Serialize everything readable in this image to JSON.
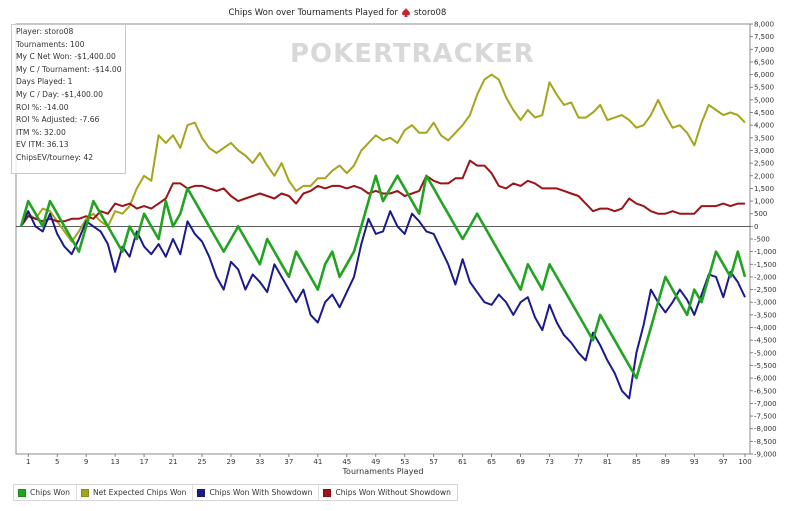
{
  "title_text": "Chips Won over Tournaments Played for",
  "player_name": "storo08",
  "watermark": "POKERTRACKER",
  "stats": [
    "Player: storo08",
    "Tournaments: 100",
    "My C Net Won: -$1,400.00",
    "My C / Tournament: -$14.00",
    "Days Played: 1",
    "My C / Day: -$1,400.00",
    "ROI %: -14.00",
    "ROI % Adjusted: -7.66",
    "ITM %: 32.00",
    "EV ITM: 36.13",
    "ChipsEV/tourney: 42"
  ],
  "chart_data": {
    "type": "line",
    "title": "Chips Won over Tournaments Played for storo08",
    "xlabel": "Tournaments Played",
    "ylabel": "",
    "xlim": [
      0,
      100
    ],
    "ylim": [
      -9000,
      8000
    ],
    "x_ticks": [
      1,
      5,
      9,
      13,
      17,
      21,
      25,
      29,
      33,
      37,
      41,
      45,
      49,
      53,
      57,
      61,
      65,
      69,
      73,
      77,
      81,
      85,
      89,
      93,
      97,
      100
    ],
    "y_ticks": [
      8000,
      7500,
      7000,
      6500,
      6000,
      5500,
      5000,
      4500,
      4000,
      3500,
      3000,
      2500,
      2000,
      1500,
      1000,
      500,
      0,
      -500,
      -1000,
      -1500,
      -2000,
      -2500,
      -3000,
      -3500,
      -4000,
      -4500,
      -5000,
      -5500,
      -6000,
      -6500,
      -7000,
      -7500,
      -8000,
      -8500,
      -9000
    ],
    "y_tick_labels": [
      "8,000",
      "7,500",
      "7,000",
      "6,500",
      "6,000",
      "5,500",
      "5,000",
      "4,500",
      "4,000",
      "3,500",
      "3,000",
      "2,500",
      "2,000",
      "1,500",
      "1,000",
      "500",
      "0",
      "-500",
      "-1,000",
      "-1,500",
      "-2,000",
      "-2,500",
      "-3,000",
      "-3,500",
      "-4,000",
      "-4,500",
      "-5,000",
      "-5,500",
      "-6,000",
      "-6,500",
      "-7,000",
      "-7,500",
      "-8,000",
      "-8,500",
      "-9,000"
    ],
    "grid": false,
    "legend_position": "bottom-left",
    "series": [
      {
        "name": "Chips Won",
        "color": "#22a322",
        "x": [
          0,
          1,
          2,
          3,
          4,
          5,
          6,
          7,
          8,
          9,
          10,
          11,
          12,
          13,
          14,
          15,
          16,
          17,
          18,
          19,
          20,
          21,
          22,
          23,
          24,
          25,
          26,
          27,
          28,
          29,
          30,
          31,
          32,
          33,
          34,
          35,
          36,
          37,
          38,
          39,
          40,
          41,
          42,
          43,
          44,
          45,
          46,
          47,
          48,
          49,
          50,
          51,
          52,
          53,
          54,
          55,
          56,
          57,
          58,
          59,
          60,
          61,
          62,
          63,
          64,
          65,
          66,
          67,
          68,
          69,
          70,
          71,
          72,
          73,
          74,
          75,
          76,
          77,
          78,
          79,
          80,
          81,
          82,
          83,
          84,
          85,
          86,
          87,
          88,
          89,
          90,
          91,
          92,
          93,
          94,
          95,
          96,
          97,
          98,
          99,
          100
        ],
        "values": [
          0,
          1000,
          500,
          0,
          1000,
          500,
          0,
          -500,
          -1000,
          0,
          1000,
          500,
          0,
          -500,
          -1000,
          0,
          -500,
          500,
          0,
          -500,
          1000,
          0,
          500,
          1500,
          1000,
          500,
          0,
          -500,
          -1000,
          -500,
          0,
          -500,
          -1000,
          -1500,
          -500,
          -1000,
          -1500,
          -2000,
          -1000,
          -1500,
          -2000,
          -2500,
          -1500,
          -1000,
          -2000,
          -1500,
          -1000,
          0,
          1000,
          2000,
          1000,
          1500,
          2000,
          1500,
          1000,
          500,
          2000,
          1500,
          1000,
          500,
          0,
          -500,
          0,
          500,
          0,
          -500,
          -1000,
          -1500,
          -2000,
          -2500,
          -1500,
          -2000,
          -2500,
          -1500,
          -2000,
          -2500,
          -3000,
          -3500,
          -4000,
          -4500,
          -3500,
          -4000,
          -4500,
          -5000,
          -5500,
          -6000,
          -5000,
          -4000,
          -3000,
          -2000,
          -2500,
          -3000,
          -3500,
          -2500,
          -3000,
          -2000,
          -1000,
          -1500,
          -2000,
          -1000,
          -2000
        ]
      },
      {
        "name": "Net Expected Chips Won",
        "color": "#a4a51c",
        "x": [
          0,
          1,
          2,
          3,
          4,
          5,
          6,
          7,
          8,
          9,
          10,
          11,
          12,
          13,
          14,
          15,
          16,
          17,
          18,
          19,
          20,
          21,
          22,
          23,
          24,
          25,
          26,
          27,
          28,
          29,
          30,
          31,
          32,
          33,
          34,
          35,
          36,
          37,
          38,
          39,
          40,
          41,
          42,
          43,
          44,
          45,
          46,
          47,
          48,
          49,
          50,
          51,
          52,
          53,
          54,
          55,
          56,
          57,
          58,
          59,
          60,
          61,
          62,
          63,
          64,
          65,
          66,
          67,
          68,
          69,
          70,
          71,
          72,
          73,
          74,
          75,
          76,
          77,
          78,
          79,
          80,
          81,
          82,
          83,
          84,
          85,
          86,
          87,
          88,
          89,
          90,
          91,
          92,
          93,
          94,
          95,
          96,
          97,
          98,
          99,
          100
        ],
        "values": [
          0,
          500,
          300,
          700,
          600,
          200,
          -200,
          -600,
          -200,
          300,
          500,
          200,
          0,
          600,
          500,
          800,
          1500,
          2000,
          1800,
          3600,
          3300,
          3600,
          3100,
          4000,
          4100,
          3500,
          3100,
          2900,
          3100,
          3300,
          3000,
          2800,
          2500,
          2900,
          2400,
          2000,
          2500,
          1800,
          1400,
          1600,
          1600,
          1900,
          1900,
          2200,
          2400,
          2100,
          2400,
          3000,
          3300,
          3600,
          3400,
          3500,
          3300,
          3800,
          4000,
          3700,
          3700,
          4100,
          3600,
          3400,
          3700,
          4000,
          4400,
          5200,
          5800,
          6000,
          5800,
          5100,
          4600,
          4200,
          4600,
          4300,
          4400,
          5700,
          5200,
          4800,
          4900,
          4300,
          4300,
          4500,
          4800,
          4200,
          4300,
          4400,
          4200,
          3900,
          4000,
          4400,
          5000,
          4400,
          3900,
          4000,
          3700,
          3200,
          4100,
          4800,
          4600,
          4400,
          4500,
          4400,
          4100
        ]
      },
      {
        "name": "Chips Won With Showdown",
        "color": "#1a1a8c",
        "x": [
          0,
          1,
          2,
          3,
          4,
          5,
          6,
          7,
          8,
          9,
          10,
          11,
          12,
          13,
          14,
          15,
          16,
          17,
          18,
          19,
          20,
          21,
          22,
          23,
          24,
          25,
          26,
          27,
          28,
          29,
          30,
          31,
          32,
          33,
          34,
          35,
          36,
          37,
          38,
          39,
          40,
          41,
          42,
          43,
          44,
          45,
          46,
          47,
          48,
          49,
          50,
          51,
          52,
          53,
          54,
          55,
          56,
          57,
          58,
          59,
          60,
          61,
          62,
          63,
          64,
          65,
          66,
          67,
          68,
          69,
          70,
          71,
          72,
          73,
          74,
          75,
          76,
          77,
          78,
          79,
          80,
          81,
          82,
          83,
          84,
          85,
          86,
          87,
          88,
          89,
          90,
          91,
          92,
          93,
          94,
          95,
          96,
          97,
          98,
          99,
          100
        ],
        "values": [
          0,
          600,
          0,
          -200,
          500,
          -300,
          -800,
          -1100,
          -500,
          200,
          0,
          -200,
          -700,
          -1800,
          -800,
          -1200,
          -200,
          -800,
          -1100,
          -700,
          -1200,
          -500,
          -1100,
          200,
          -300,
          -600,
          -1200,
          -2000,
          -2500,
          -1400,
          -1700,
          -2500,
          -1900,
          -2200,
          -2600,
          -1500,
          -2000,
          -2500,
          -3000,
          -2500,
          -3500,
          -3800,
          -3000,
          -2700,
          -3200,
          -2600,
          -2000,
          -700,
          300,
          -300,
          -200,
          600,
          0,
          -300,
          500,
          200,
          -200,
          -300,
          -900,
          -1500,
          -2300,
          -1300,
          -2200,
          -2600,
          -3000,
          -3100,
          -2700,
          -3000,
          -3500,
          -3000,
          -2800,
          -3600,
          -4100,
          -3100,
          -3800,
          -4300,
          -4600,
          -5000,
          -5300,
          -4200,
          -4700,
          -5300,
          -5800,
          -6500,
          -6800,
          -5000,
          -3900,
          -2500,
          -3000,
          -3400,
          -3000,
          -2500,
          -2900,
          -3500,
          -2700,
          -1900,
          -2000,
          -2800,
          -1800,
          -2200,
          -2800
        ]
      },
      {
        "name": "Chips Won Without Showdown",
        "color": "#9b1418",
        "x": [
          0,
          1,
          2,
          3,
          4,
          5,
          6,
          7,
          8,
          9,
          10,
          11,
          12,
          13,
          14,
          15,
          16,
          17,
          18,
          19,
          20,
          21,
          22,
          23,
          24,
          25,
          26,
          27,
          28,
          29,
          30,
          31,
          32,
          33,
          34,
          35,
          36,
          37,
          38,
          39,
          40,
          41,
          42,
          43,
          44,
          45,
          46,
          47,
          48,
          49,
          50,
          51,
          52,
          53,
          54,
          55,
          56,
          57,
          58,
          59,
          60,
          61,
          62,
          63,
          64,
          65,
          66,
          67,
          68,
          69,
          70,
          71,
          72,
          73,
          74,
          75,
          76,
          77,
          78,
          79,
          80,
          81,
          82,
          83,
          84,
          85,
          86,
          87,
          88,
          89,
          90,
          91,
          92,
          93,
          94,
          95,
          96,
          97,
          98,
          99,
          100
        ],
        "values": [
          0,
          400,
          300,
          200,
          300,
          200,
          200,
          300,
          300,
          400,
          300,
          600,
          500,
          900,
          800,
          900,
          700,
          800,
          700,
          900,
          1100,
          1700,
          1700,
          1500,
          1600,
          1600,
          1500,
          1400,
          1500,
          1200,
          1000,
          1100,
          1200,
          1300,
          1200,
          1100,
          1300,
          1200,
          900,
          1300,
          1400,
          1600,
          1500,
          1600,
          1600,
          1500,
          1600,
          1500,
          1300,
          1400,
          1300,
          1300,
          1400,
          1200,
          1300,
          1400,
          2000,
          1800,
          1700,
          1700,
          1900,
          1900,
          2600,
          2400,
          2400,
          2100,
          1600,
          1500,
          1700,
          1600,
          1800,
          1700,
          1500,
          1500,
          1500,
          1400,
          1300,
          1200,
          900,
          600,
          700,
          700,
          600,
          700,
          1100,
          900,
          800,
          600,
          500,
          500,
          600,
          500,
          500,
          500,
          800,
          800,
          800,
          900,
          800,
          900,
          900
        ]
      }
    ]
  }
}
